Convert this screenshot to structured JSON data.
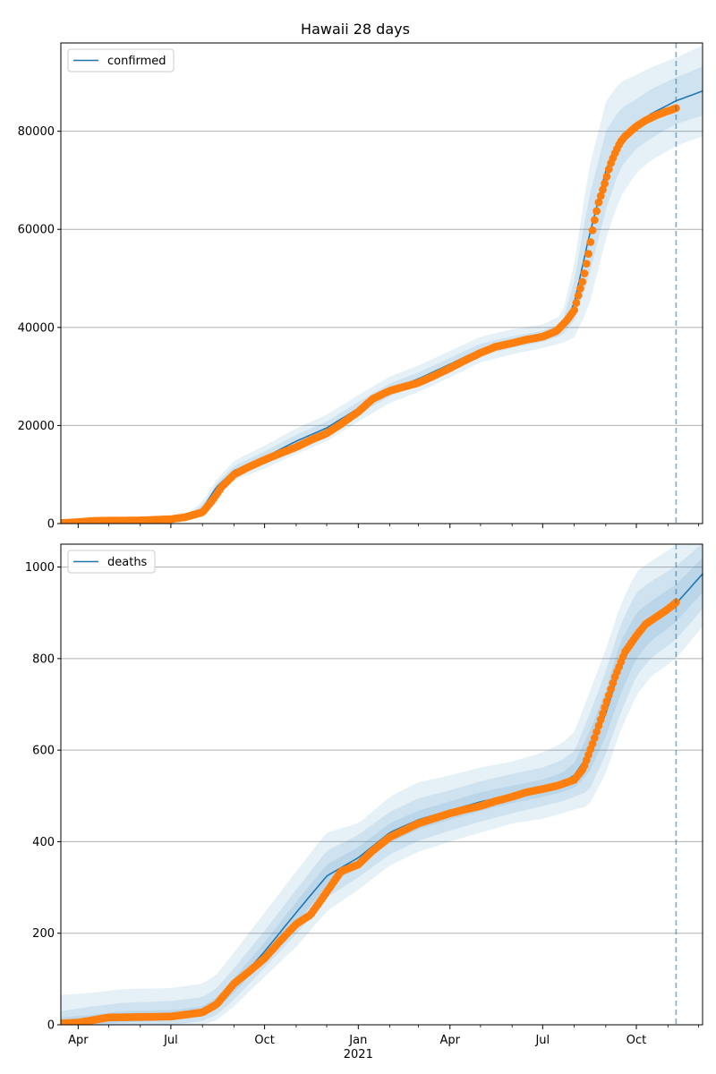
{
  "figure": {
    "title": "Hawaii 28 days"
  },
  "colors": {
    "model": "#1f77b4",
    "observed": "#ff7f0e",
    "band": "#1f77b4",
    "grid": "#b0b0b0",
    "axis": "#000000"
  },
  "chart_data": [
    {
      "type": "line",
      "panel": "top",
      "title": "Hawaii 28 days",
      "legend": {
        "entries": [
          "confirmed"
        ],
        "placement": "top-left"
      },
      "x_range": [
        "2020-03-15",
        "2021-12-05"
      ],
      "x_ticks": [
        {
          "date": "2020-04-01",
          "label": "Apr"
        },
        {
          "date": "2020-07-01",
          "label": "Jul"
        },
        {
          "date": "2020-10-01",
          "label": "Oct"
        },
        {
          "date": "2021-01-01",
          "label": "Jan",
          "sublabel": "2021"
        },
        {
          "date": "2021-04-01",
          "label": "Apr"
        },
        {
          "date": "2021-07-01",
          "label": "Jul"
        },
        {
          "date": "2021-10-01",
          "label": "Oct"
        }
      ],
      "x_minor_ticks": [
        "2020-05-01",
        "2020-06-01",
        "2020-08-01",
        "2020-09-01",
        "2020-11-01",
        "2020-12-01",
        "2021-02-01",
        "2021-03-01",
        "2021-05-01",
        "2021-06-01",
        "2021-08-01",
        "2021-09-01",
        "2021-11-01",
        "2021-12-01"
      ],
      "ylim": [
        0,
        98000
      ],
      "y_ticks": [
        0,
        20000,
        40000,
        60000,
        80000
      ],
      "grid": "horizontal",
      "forecast_date": "2021-11-09",
      "series": [
        {
          "name": "confirmed",
          "role": "model",
          "x": [
            "2020-03-15",
            "2020-04-15",
            "2020-06-15",
            "2020-07-15",
            "2020-08-01",
            "2020-08-15",
            "2020-09-01",
            "2020-10-01",
            "2020-11-01",
            "2020-12-01",
            "2021-01-01",
            "2021-02-01",
            "2021-03-01",
            "2021-04-01",
            "2021-05-01",
            "2021-06-01",
            "2021-07-01",
            "2021-07-20",
            "2021-08-01",
            "2021-08-15",
            "2021-09-01",
            "2021-09-15",
            "2021-10-01",
            "2021-10-15",
            "2021-11-09",
            "2021-12-05"
          ],
          "y": [
            200,
            500,
            700,
            1200,
            3000,
            7500,
            10800,
            13500,
            16800,
            19500,
            23500,
            27300,
            29500,
            32500,
            35500,
            37000,
            38200,
            39500,
            45000,
            58000,
            72000,
            78500,
            81500,
            83500,
            86200,
            88200
          ],
          "bands": [
            {
              "lower": [
                100,
                300,
                500,
                900,
                2300,
                6800,
                9800,
                12300,
                15500,
                18200,
                22200,
                26000,
                28200,
                31200,
                34300,
                35800,
                37100,
                38300,
                41500,
                50000,
                64000,
                72500,
                76500,
                78500,
                81500,
                83200
              ],
              "upper": [
                300,
                700,
                900,
                1500,
                3700,
                8200,
                11800,
                14700,
                18100,
                20800,
                24800,
                28600,
                30800,
                33800,
                36700,
                38200,
                39300,
                40800,
                49500,
                66000,
                80000,
                84500,
                86500,
                88500,
                91000,
                93200
              ]
            },
            {
              "lower": [
                0,
                100,
                300,
                600,
                1600,
                6000,
                8800,
                11200,
                14200,
                16800,
                20800,
                24600,
                26800,
                29800,
                32900,
                34500,
                35800,
                36800,
                38000,
                44000,
                58000,
                66500,
                71500,
                74000,
                77000,
                79000
              ],
              "upper": [
                500,
                1000,
                1200,
                1800,
                4400,
                9000,
                12800,
                15900,
                19400,
                22200,
                26200,
                30000,
                32200,
                35200,
                38100,
                39600,
                40600,
                42500,
                53000,
                72000,
                86000,
                90000,
                91500,
                93000,
                95000,
                97500
              ]
            }
          ]
        },
        {
          "name": "",
          "role": "observed",
          "x": [
            "2020-03-15",
            "2020-04-01",
            "2020-04-15",
            "2020-05-01",
            "2020-06-01",
            "2020-07-01",
            "2020-07-15",
            "2020-08-01",
            "2020-08-10",
            "2020-08-20",
            "2020-09-01",
            "2020-09-15",
            "2020-10-01",
            "2020-10-15",
            "2020-11-01",
            "2020-11-15",
            "2020-12-01",
            "2020-12-15",
            "2021-01-01",
            "2021-01-15",
            "2021-02-01",
            "2021-02-15",
            "2021-03-01",
            "2021-03-15",
            "2021-04-01",
            "2021-04-15",
            "2021-05-01",
            "2021-05-15",
            "2021-06-01",
            "2021-06-15",
            "2021-07-01",
            "2021-07-15",
            "2021-07-25",
            "2021-08-01",
            "2021-08-05",
            "2021-08-10",
            "2021-08-15",
            "2021-08-20",
            "2021-08-25",
            "2021-09-01",
            "2021-09-05",
            "2021-09-10",
            "2021-09-15",
            "2021-09-20",
            "2021-10-01",
            "2021-10-10",
            "2021-10-20",
            "2021-10-30",
            "2021-11-05",
            "2021-11-10"
          ],
          "y": [
            100,
            300,
            550,
            600,
            650,
            900,
            1300,
            2300,
            4500,
            7500,
            10000,
            11500,
            13000,
            14200,
            15600,
            17000,
            18400,
            20300,
            22800,
            25400,
            27100,
            27900,
            28700,
            30000,
            31700,
            33200,
            34800,
            36000,
            36800,
            37500,
            38100,
            39300,
            41500,
            43500,
            46500,
            50000,
            55000,
            61000,
            65500,
            70000,
            73000,
            75500,
            77700,
            79000,
            81000,
            82200,
            83200,
            84000,
            84400,
            84800
          ]
        }
      ]
    },
    {
      "type": "line",
      "panel": "bottom",
      "legend": {
        "entries": [
          "deaths"
        ],
        "placement": "top-left"
      },
      "x_range": [
        "2020-03-15",
        "2021-12-05"
      ],
      "ylim": [
        0,
        1050
      ],
      "y_ticks": [
        0,
        200,
        400,
        600,
        800,
        1000
      ],
      "grid": "horizontal",
      "forecast_date": "2021-11-09",
      "series": [
        {
          "name": "deaths",
          "role": "model",
          "x": [
            "2020-03-15",
            "2020-04-15",
            "2020-05-15",
            "2020-07-01",
            "2020-08-01",
            "2020-08-15",
            "2020-09-01",
            "2020-10-01",
            "2020-11-01",
            "2020-12-01",
            "2021-01-01",
            "2021-02-01",
            "2021-03-01",
            "2021-04-01",
            "2021-05-01",
            "2021-06-01",
            "2021-07-01",
            "2021-07-20",
            "2021-08-01",
            "2021-08-15",
            "2021-09-01",
            "2021-09-15",
            "2021-10-01",
            "2021-10-15",
            "2021-11-09",
            "2021-12-05"
          ],
          "y": [
            3,
            8,
            16,
            18,
            26,
            45,
            85,
            160,
            245,
            325,
            365,
            420,
            448,
            468,
            487,
            503,
            516,
            528,
            545,
            590,
            680,
            780,
            850,
            880,
            920,
            985
          ],
          "bands": [
            {
              "lower": [
                0,
                0,
                5,
                10,
                18,
                34,
                70,
                142,
                222,
                302,
                345,
                398,
                427,
                448,
                467,
                484,
                498,
                508,
                518,
                548,
                630,
                720,
                800,
                838,
                880,
                945
              ],
              "upper": [
                16,
                22,
                30,
                32,
                40,
                60,
                102,
                180,
                268,
                350,
                388,
                440,
                468,
                488,
                508,
                522,
                536,
                550,
                572,
                635,
                730,
                835,
                900,
                925,
                962,
                1020
              ]
            },
            {
              "lower": [
                0,
                0,
                0,
                0,
                8,
                22,
                55,
                125,
                198,
                278,
                322,
                372,
                402,
                424,
                444,
                462,
                478,
                488,
                498,
                510,
                590,
                678,
                762,
                800,
                842,
                908
              ],
              "upper": [
                30,
                40,
                48,
                52,
                60,
                80,
                124,
                205,
                295,
                380,
                415,
                465,
                495,
                512,
                532,
                548,
                562,
                578,
                598,
                672,
                772,
                872,
                945,
                968,
                1002,
                1052
              ]
            },
            {
              "lower": [
                0,
                0,
                0,
                0,
                0,
                10,
                40,
                105,
                170,
                248,
                295,
                348,
                378,
                400,
                420,
                440,
                450,
                462,
                470,
                478,
                550,
                640,
                720,
                760,
                800,
                870
              ],
              "upper": [
                65,
                70,
                78,
                80,
                90,
                110,
                158,
                245,
                335,
                420,
                440,
                498,
                530,
                545,
                562,
                575,
                595,
                615,
                640,
                720,
                820,
                915,
                990,
                1012,
                1048,
                1090
              ]
            }
          ]
        },
        {
          "name": "",
          "role": "observed",
          "x": [
            "2020-03-15",
            "2020-04-01",
            "2020-04-10",
            "2020-04-20",
            "2020-05-01",
            "2020-06-01",
            "2020-07-01",
            "2020-07-15",
            "2020-08-01",
            "2020-08-15",
            "2020-09-01",
            "2020-09-15",
            "2020-10-01",
            "2020-10-15",
            "2020-11-01",
            "2020-11-15",
            "2020-12-01",
            "2020-12-15",
            "2021-01-01",
            "2021-01-15",
            "2021-02-01",
            "2021-02-15",
            "2021-03-01",
            "2021-03-15",
            "2021-04-01",
            "2021-04-15",
            "2021-05-01",
            "2021-05-15",
            "2021-06-01",
            "2021-06-15",
            "2021-07-01",
            "2021-07-15",
            "2021-08-01",
            "2021-08-10",
            "2021-08-20",
            "2021-09-01",
            "2021-09-10",
            "2021-09-20",
            "2021-10-01",
            "2021-10-10",
            "2021-10-20",
            "2021-10-30",
            "2021-11-05",
            "2021-11-10"
          ],
          "y": [
            3,
            5,
            8,
            12,
            16,
            17,
            18,
            22,
            27,
            45,
            90,
            115,
            145,
            180,
            220,
            240,
            290,
            335,
            350,
            380,
            410,
            425,
            440,
            450,
            462,
            470,
            478,
            488,
            498,
            508,
            515,
            522,
            535,
            560,
            620,
            700,
            760,
            815,
            850,
            875,
            890,
            905,
            915,
            925
          ]
        }
      ]
    }
  ]
}
